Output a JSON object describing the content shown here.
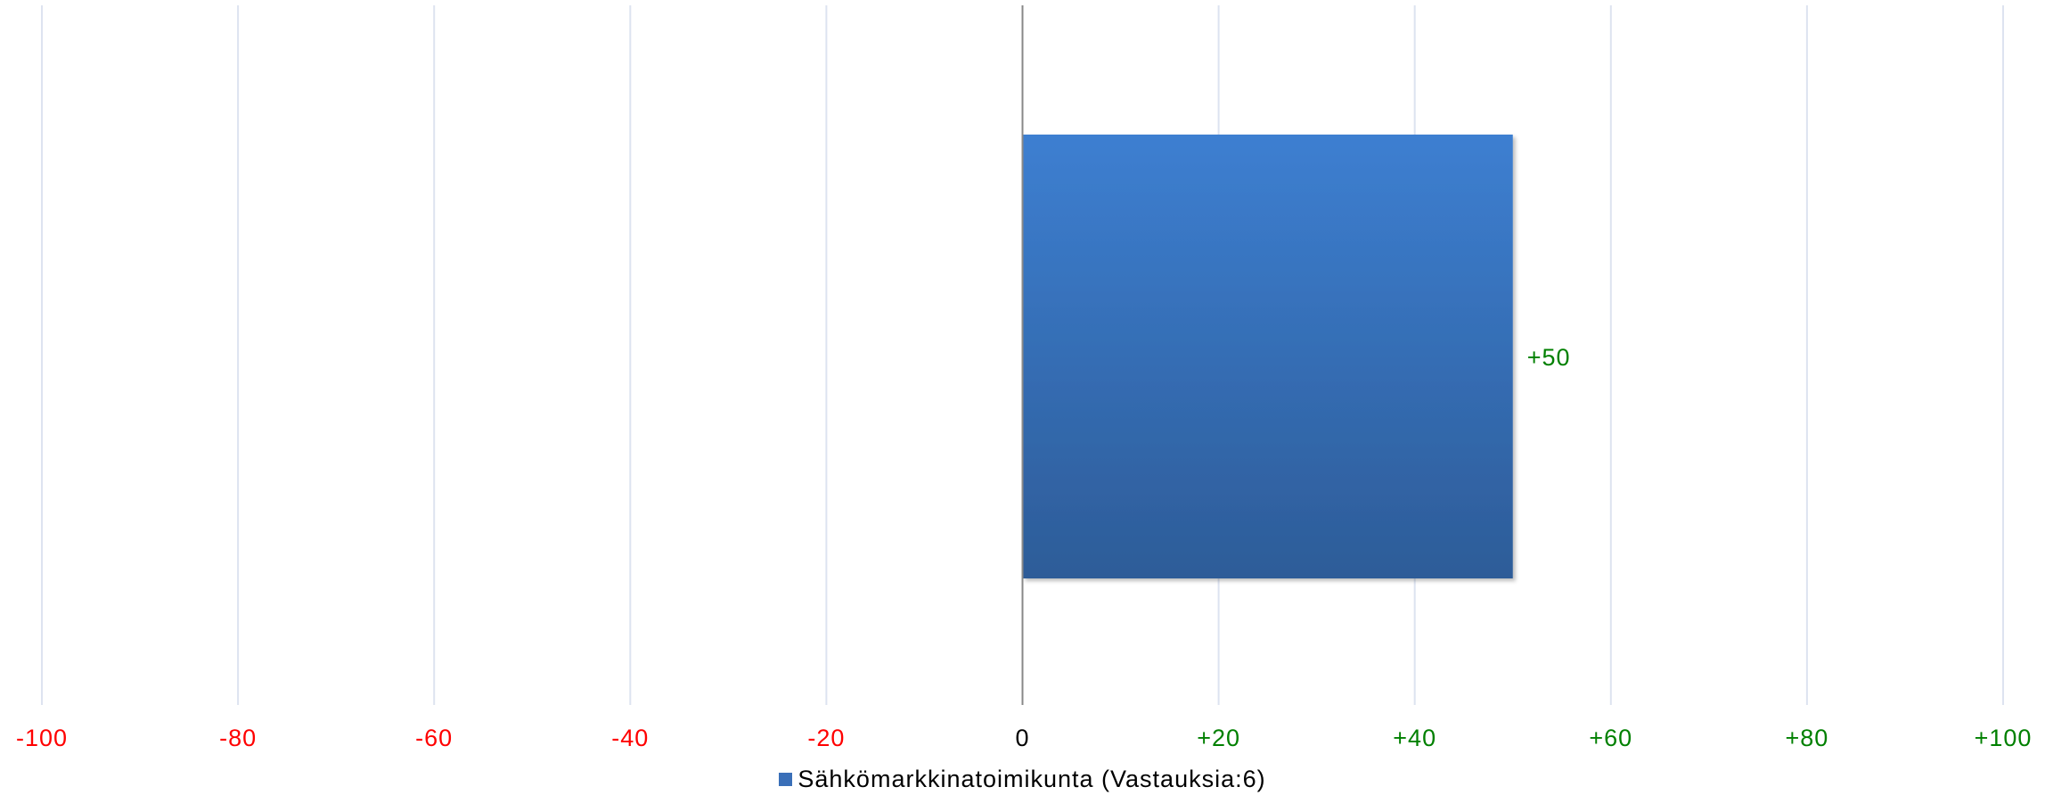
{
  "chart_data": {
    "type": "bar",
    "orientation": "horizontal",
    "categories": [
      ""
    ],
    "series": [
      {
        "name": "Sähkömarkkinatoimikunta (Vastauksia:6)",
        "values": [
          50
        ],
        "data_labels": [
          "+50"
        ]
      }
    ],
    "xlim": [
      -100,
      100
    ],
    "xticks": [
      {
        "value": -100,
        "label": "-100"
      },
      {
        "value": -80,
        "label": "-80"
      },
      {
        "value": -60,
        "label": "-60"
      },
      {
        "value": -40,
        "label": "-40"
      },
      {
        "value": -20,
        "label": "-20"
      },
      {
        "value": 0,
        "label": "0"
      },
      {
        "value": 20,
        "label": "+20"
      },
      {
        "value": 40,
        "label": "+40"
      },
      {
        "value": 60,
        "label": "+60"
      },
      {
        "value": 80,
        "label": "+80"
      },
      {
        "value": 100,
        "label": "+100"
      }
    ],
    "grid": true,
    "legend_position": "bottom",
    "title": "",
    "xlabel": "",
    "ylabel": ""
  },
  "colors": {
    "bar_top": "#3d7fd1",
    "bar_bottom": "#2d5c98",
    "legend_swatch": "#3a6fb8",
    "negative": "#ff0000",
    "positive": "#008000",
    "zero": "#000000",
    "grid": "#dde3f0",
    "zero_axis": "#888888"
  }
}
